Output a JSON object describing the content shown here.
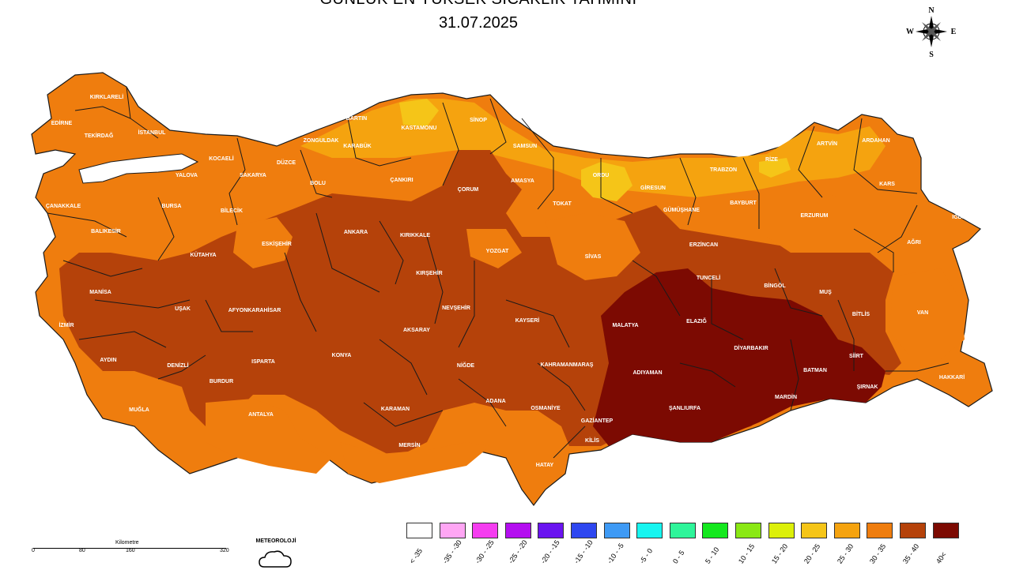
{
  "title": {
    "line1": "GÜNLÜK EN YÜKSEK SICAKLIK TAHMİNİ",
    "date": "31.07.2025"
  },
  "compass": {
    "n": "N",
    "e": "E",
    "s": "S",
    "w": "W"
  },
  "colors": {
    "border": "#1a1a1a",
    "c20_25": "#f5c518",
    "c25_30": "#f5a30f",
    "c30_35": "#ef7d0e",
    "c35_40": "#b5420a",
    "c40": "#7c0a02"
  },
  "provinces": [
    {
      "name": "KIRKLARELİ"
    },
    {
      "name": "EDİRNE"
    },
    {
      "name": "TEKİRDAĞ"
    },
    {
      "name": "İSTANBUL"
    },
    {
      "name": "KOCAELİ"
    },
    {
      "name": "YALOVA"
    },
    {
      "name": "SAKARYA"
    },
    {
      "name": "DÜZCE"
    },
    {
      "name": "ZONGULDAK"
    },
    {
      "name": "BARTIN"
    },
    {
      "name": "KASTAMONU"
    },
    {
      "name": "SİNOP"
    },
    {
      "name": "KARABÜK"
    },
    {
      "name": "BOLU"
    },
    {
      "name": "ÇANKIRI"
    },
    {
      "name": "ÇORUM"
    },
    {
      "name": "SAMSUN"
    },
    {
      "name": "AMASYA"
    },
    {
      "name": "ORDU"
    },
    {
      "name": "GİRESUN"
    },
    {
      "name": "TRABZON"
    },
    {
      "name": "RİZE"
    },
    {
      "name": "ARTVİN"
    },
    {
      "name": "ARDAHAN"
    },
    {
      "name": "KARS"
    },
    {
      "name": "IĞDIR"
    },
    {
      "name": "AĞRI"
    },
    {
      "name": "ERZURUM"
    },
    {
      "name": "BAYBURT"
    },
    {
      "name": "GÜMÜŞHANE"
    },
    {
      "name": "TOKAT"
    },
    {
      "name": "ERZİNCAN"
    },
    {
      "name": "SİVAS"
    },
    {
      "name": "YOZGAT"
    },
    {
      "name": "KIRIKKALE"
    },
    {
      "name": "ANKARA"
    },
    {
      "name": "ESKİŞEHİR"
    },
    {
      "name": "BİLECİK"
    },
    {
      "name": "BURSA"
    },
    {
      "name": "BALIKESİR"
    },
    {
      "name": "ÇANAKKALE"
    },
    {
      "name": "KÜTAHYA"
    },
    {
      "name": "MANİSA"
    },
    {
      "name": "İZMİR"
    },
    {
      "name": "UŞAK"
    },
    {
      "name": "AFYONKARAHİSAR"
    },
    {
      "name": "AYDIN"
    },
    {
      "name": "DENİZLİ"
    },
    {
      "name": "MUĞLA"
    },
    {
      "name": "BURDUR"
    },
    {
      "name": "ISPARTA"
    },
    {
      "name": "ANTALYA"
    },
    {
      "name": "KONYA"
    },
    {
      "name": "KARAMAN"
    },
    {
      "name": "MERSİN"
    },
    {
      "name": "AKSARAY"
    },
    {
      "name": "KIRŞEHİR"
    },
    {
      "name": "NEVŞEHİR"
    },
    {
      "name": "NİĞDE"
    },
    {
      "name": "KAYSERİ"
    },
    {
      "name": "ADANA"
    },
    {
      "name": "OSMANİYE"
    },
    {
      "name": "HATAY"
    },
    {
      "name": "KAHRAMANMARAŞ"
    },
    {
      "name": "GAZİANTEP"
    },
    {
      "name": "KİLİS"
    },
    {
      "name": "MALATYA"
    },
    {
      "name": "ADIYAMAN"
    },
    {
      "name": "ŞANLIURFA"
    },
    {
      "name": "ELAZIĞ"
    },
    {
      "name": "TUNCELİ"
    },
    {
      "name": "BİNGÖL"
    },
    {
      "name": "MUŞ"
    },
    {
      "name": "DİYARBAKIR"
    },
    {
      "name": "MARDİN"
    },
    {
      "name": "BATMAN"
    },
    {
      "name": "SİİRT"
    },
    {
      "name": "ŞIRNAK"
    },
    {
      "name": "BİTLİS"
    },
    {
      "name": "VAN"
    },
    {
      "name": "HAKKARİ"
    }
  ],
  "legend": [
    {
      "label": "< -35",
      "color": "#ffffff"
    },
    {
      "label": "-35 - -30",
      "color": "#ffa6f4"
    },
    {
      "label": "-30 - -25",
      "color": "#f53df0"
    },
    {
      "label": "-25 - -20",
      "color": "#b40ef0"
    },
    {
      "label": "-20 - -15",
      "color": "#6a14f0"
    },
    {
      "label": "-15 - -10",
      "color": "#2e47f0"
    },
    {
      "label": "-10 - -5",
      "color": "#3e9af5"
    },
    {
      "label": "-5 - 0",
      "color": "#17f5f0"
    },
    {
      "label": "0 - 5",
      "color": "#2ef59a"
    },
    {
      "label": "5 - 10",
      "color": "#14e81e"
    },
    {
      "label": "10 - 15",
      "color": "#8ae814"
    },
    {
      "label": "15 - 20",
      "color": "#dcf00a"
    },
    {
      "label": "20 - 25",
      "color": "#f5c518"
    },
    {
      "label": "25 - 30",
      "color": "#f5a30f"
    },
    {
      "label": "30 - 35",
      "color": "#ef7d0e"
    },
    {
      "label": "35 - 40",
      "color": "#b5420a"
    },
    {
      "label": "40<",
      "color": "#7c0a02"
    }
  ],
  "scale": {
    "title": "Kilometre",
    "ticks": [
      "0",
      "80",
      "160",
      "320"
    ]
  },
  "logo": {
    "text": "METEOROLOJİ"
  }
}
